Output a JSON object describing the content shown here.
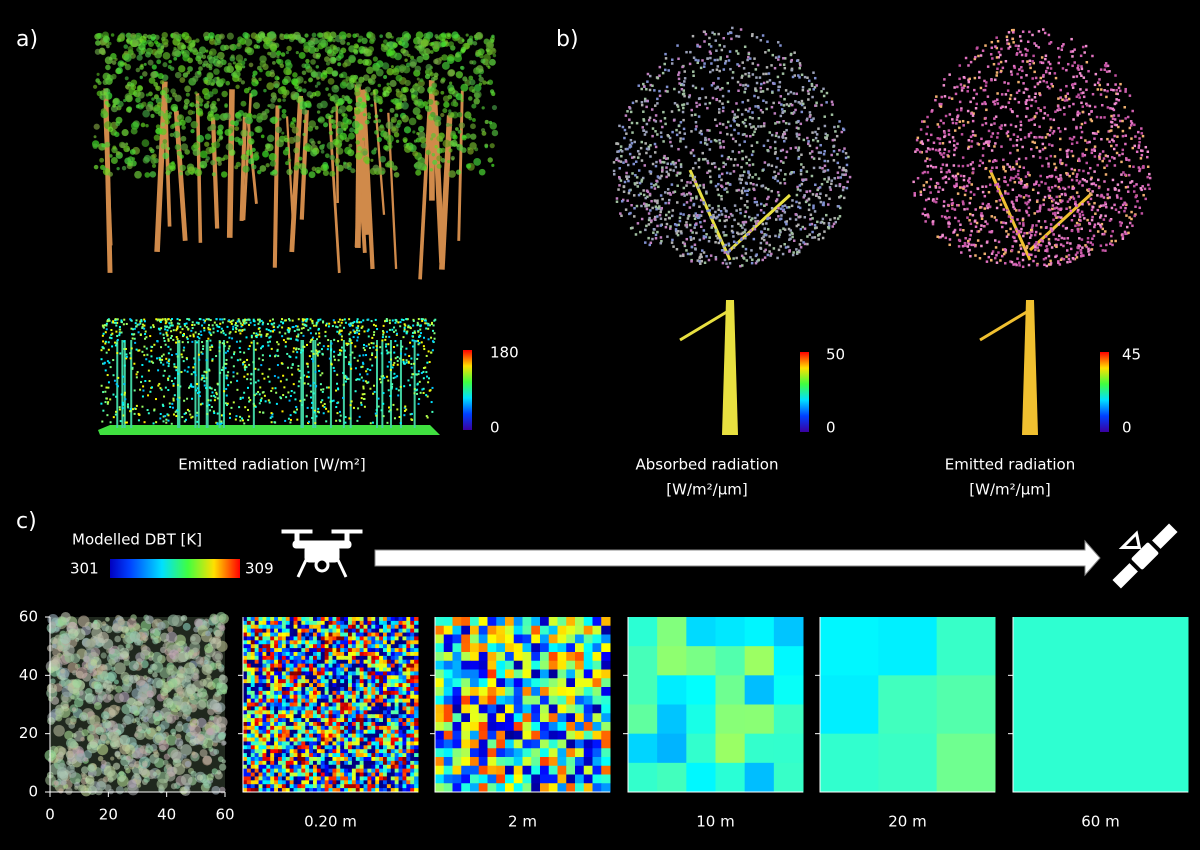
{
  "panels": {
    "a": {
      "label": "a)",
      "colorbar": {
        "max": 180,
        "min": 0
      },
      "caption": "Emitted radiation [W/m²]"
    },
    "b": {
      "label": "b)",
      "left": {
        "colorbar": {
          "max": 50,
          "min": 0
        },
        "caption": [
          "Absorbed radiation",
          "[W/m²/µm]"
        ]
      },
      "right": {
        "colorbar": {
          "max": 45,
          "min": 0
        },
        "caption": [
          "Emitted radiation",
          "[W/m²/µm]"
        ]
      }
    },
    "c": {
      "label": "c)",
      "legend": {
        "title": "Modelled DBT [K]",
        "min": 301,
        "max": 309
      },
      "yticks": [
        0,
        20,
        40,
        60
      ],
      "xticks": [
        0,
        20,
        40,
        60
      ],
      "resolutions": [
        "0.20 m",
        "2 m",
        "10 m",
        "20 m",
        "60 m"
      ]
    }
  }
}
